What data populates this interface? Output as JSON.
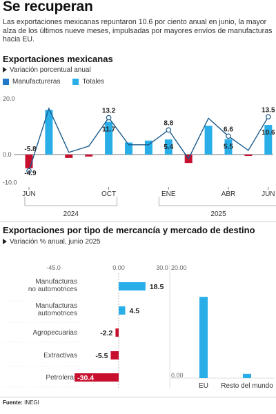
{
  "headline": "Se recuperan",
  "lead": "Las exportaciones mexicanas repuntaron 10.6 por ciento anual en junio, la mayor alza  de los últimos nueve meses, impulsadas por mayores envíos de manufacturas hacia EU.",
  "colors": {
    "manufactureras": "#1f78c8",
    "totales": "#29aee8",
    "negative": "#c8102e",
    "line": "#1a5a8c"
  },
  "chart_data": [
    {
      "type": "bar",
      "title": "Exportaciones mexicanas",
      "subtitle": "Variación porcentual anual",
      "legend": [
        "Manufactureras",
        "Totales"
      ],
      "ylim": [
        -10,
        20
      ],
      "yticks": [
        "20.0",
        "0.0",
        "-10.0"
      ],
      "categories": [
        "JUN",
        "",
        "",
        "",
        "OCT",
        "",
        "",
        "ENE",
        "",
        "",
        "ABR",
        "",
        "JUN"
      ],
      "axis_ticks": [
        "JUN",
        "OCT",
        "ENE",
        "ABR",
        "JUN"
      ],
      "years": [
        "2024",
        "2025"
      ],
      "series": [
        {
          "name": "Manufactureras",
          "values": [
            -5.8,
            16.5,
            0.8,
            3.0,
            13.2,
            3.5,
            3.5,
            8.8,
            -1.5,
            13.0,
            6.6,
            1.5,
            13.5
          ]
        },
        {
          "name": "Totales",
          "values": [
            -4.9,
            16.0,
            -1.2,
            -0.7,
            11.7,
            4.3,
            5.0,
            5.4,
            -3.0,
            10.3,
            5.5,
            -0.5,
            10.6
          ]
        }
      ],
      "labels_manuf": [
        "-5.8",
        "",
        "",
        "",
        "13.2",
        "",
        "",
        "8.8",
        "",
        "",
        "6.6",
        "",
        "13.5"
      ],
      "labels_totales": [
        "-4.9",
        "",
        "",
        "",
        "11.7",
        "",
        "",
        "5.4",
        "",
        "",
        "5.5",
        "",
        "10.6"
      ]
    },
    {
      "type": "bar",
      "orientation": "horizontal",
      "title": "Exportaciones por tipo de mercancía y mercado de destino",
      "subtitle": "Variación % anual, junio 2025",
      "xlim": [
        -45,
        30
      ],
      "xticks": [
        "-45.0",
        "0.00",
        "30.0"
      ],
      "categories": [
        "Manufacturas no automotrices",
        "Manufacturas automotrices",
        "Agropecuarias",
        "Extractivas",
        "Petroleras"
      ],
      "values": [
        18.5,
        4.5,
        -2.2,
        -5.5,
        -30.4
      ],
      "value_labels": [
        "18.5",
        "4.5",
        "-2.2",
        "-5.5",
        "-30.4"
      ]
    },
    {
      "type": "bar",
      "ylim": [
        0,
        20
      ],
      "yticks": [
        "20.00",
        "0.00"
      ],
      "categories": [
        "EU",
        "Resto del mundo"
      ],
      "values": [
        15.2,
        0.8
      ]
    }
  ],
  "source_label": "Fuente:",
  "source_value": " INEGI"
}
